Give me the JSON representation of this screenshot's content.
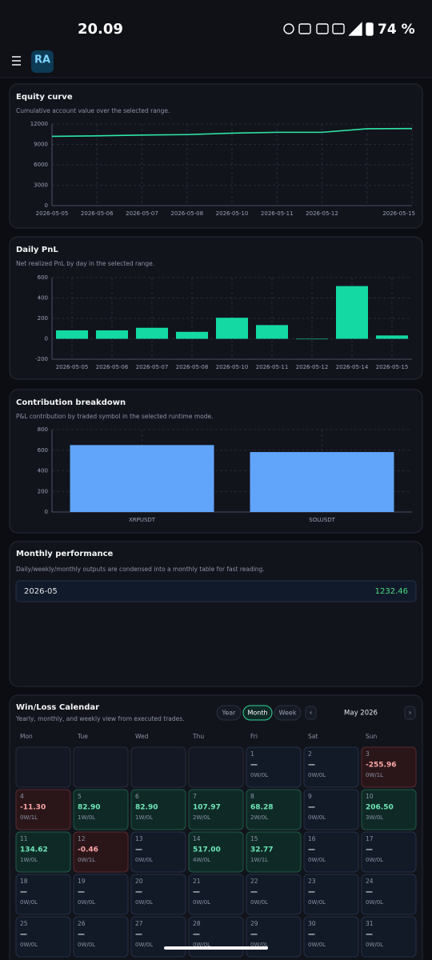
{
  "status_bar": {
    "time": "20.09",
    "battery": "74 %"
  },
  "app": {
    "logo": "RA"
  },
  "chart_data": [
    {
      "type": "line",
      "title": "Equity curve",
      "subtitle": "Cumulative account value over the selected range.",
      "categories": [
        "2026-05-05",
        "2026-05-06",
        "2026-05-07",
        "2026-05-08",
        "2026-05-10",
        "2026-05-11",
        "2026-05-12",
        null,
        "2026-05-15"
      ],
      "values": [
        10180,
        10260,
        10370,
        10440,
        10650,
        10780,
        10780,
        11300,
        11330
      ],
      "color": "#2ee6a6",
      "ylim": [
        0,
        12000
      ],
      "yticks": [
        0,
        3000,
        6000,
        9000,
        12000
      ],
      "grid": true
    },
    {
      "type": "bar",
      "title": "Daily PnL",
      "subtitle": "Net realized PnL by day in the selected range.",
      "categories": [
        "2026-05-05",
        "2026-05-06",
        "2026-05-07",
        "2026-05-08",
        "2026-05-10",
        "2026-05-11",
        "2026-05-12",
        "2026-05-14",
        "2026-05-15"
      ],
      "values": [
        82.9,
        82.9,
        107.97,
        68.28,
        206.5,
        134.62,
        -0.46,
        517,
        32.77
      ],
      "color": "#14d9a3",
      "ylim": [
        -200,
        600
      ],
      "yticks": [
        -200,
        0,
        200,
        400,
        600
      ],
      "grid": true
    },
    {
      "type": "bar",
      "title": "Contribution breakdown",
      "subtitle": "P&L contribution by traded symbol in the selected runtime mode.",
      "categories": [
        "XRPUSDT",
        "SOLUSDT"
      ],
      "values": [
        650,
        582
      ],
      "color": "#60a5fa",
      "ylim": [
        0,
        800
      ],
      "yticks": [
        0,
        200,
        400,
        600,
        800
      ],
      "grid": true
    }
  ],
  "monthly": {
    "title": "Monthly performance",
    "subtitle": "Daily/weekly/monthly outputs are condensed into a monthly table for fast reading.",
    "rows": [
      [
        "2026-05",
        "1232.46"
      ]
    ]
  },
  "calendar": {
    "title": "Win/Loss Calendar",
    "subtitle": "Yearly, monthly, and weekly view from executed trades.",
    "views": [
      "Year",
      "Month",
      "Week"
    ],
    "active_view": 1,
    "prev": "‹",
    "next": "›",
    "month": "May 2026",
    "weekdays": [
      "Mon",
      "Tue",
      "Wed",
      "Thu",
      "Fri",
      "Sat",
      "Sun"
    ],
    "weeks": [
      [
        null,
        null,
        null,
        null,
        {
          "day": 1,
          "pnl": "—",
          "record": "0W/0L"
        },
        {
          "day": 2,
          "pnl": "—",
          "record": "0W/0L"
        },
        {
          "day": 3,
          "pnl": "-255.96",
          "record": "0W/1L"
        }
      ],
      [
        {
          "day": 4,
          "pnl": "-11.30",
          "record": "0W/1L"
        },
        {
          "day": 5,
          "pnl": "82.90",
          "record": "1W/0L"
        },
        {
          "day": 6,
          "pnl": "82.90",
          "record": "1W/0L"
        },
        {
          "day": 7,
          "pnl": "107.97",
          "record": "2W/0L"
        },
        {
          "day": 8,
          "pnl": "68.28",
          "record": "2W/0L"
        },
        {
          "day": 9,
          "pnl": "—",
          "record": "0W/0L"
        },
        {
          "day": 10,
          "pnl": "206.50",
          "record": "3W/0L"
        }
      ],
      [
        {
          "day": 11,
          "pnl": "134.62",
          "record": "1W/0L"
        },
        {
          "day": 12,
          "pnl": "-0.46",
          "record": "0W/1L"
        },
        {
          "day": 13,
          "pnl": "—",
          "record": "0W/0L"
        },
        {
          "day": 14,
          "pnl": "517.00",
          "record": "4W/0L"
        },
        {
          "day": 15,
          "pnl": "32.77",
          "record": "1W/1L"
        },
        {
          "day": 16,
          "pnl": "—",
          "record": "0W/0L"
        },
        {
          "day": 17,
          "pnl": "—",
          "record": "0W/0L"
        }
      ],
      [
        {
          "day": 18,
          "pnl": "—",
          "record": "0W/0L"
        },
        {
          "day": 19,
          "pnl": "—",
          "record": "0W/0L"
        },
        {
          "day": 20,
          "pnl": "—",
          "record": "0W/0L"
        },
        {
          "day": 21,
          "pnl": "—",
          "record": "0W/0L"
        },
        {
          "day": 22,
          "pnl": "—",
          "record": "0W/0L"
        },
        {
          "day": 23,
          "pnl": "—",
          "record": "0W/0L"
        },
        {
          "day": 24,
          "pnl": "—",
          "record": "0W/0L"
        }
      ],
      [
        {
          "day": 25,
          "pnl": "—",
          "record": "0W/0L"
        },
        {
          "day": 26,
          "pnl": "—",
          "record": "0W/0L"
        },
        {
          "day": 27,
          "pnl": "—",
          "record": "0W/0L"
        },
        {
          "day": 28,
          "pnl": "—",
          "record": "0W/0L"
        },
        {
          "day": 29,
          "pnl": "—",
          "record": "0W/0L"
        },
        {
          "day": 30,
          "pnl": "—",
          "record": "0W/0L"
        },
        {
          "day": 31,
          "pnl": "—",
          "record": "0W/0L"
        }
      ]
    ]
  }
}
